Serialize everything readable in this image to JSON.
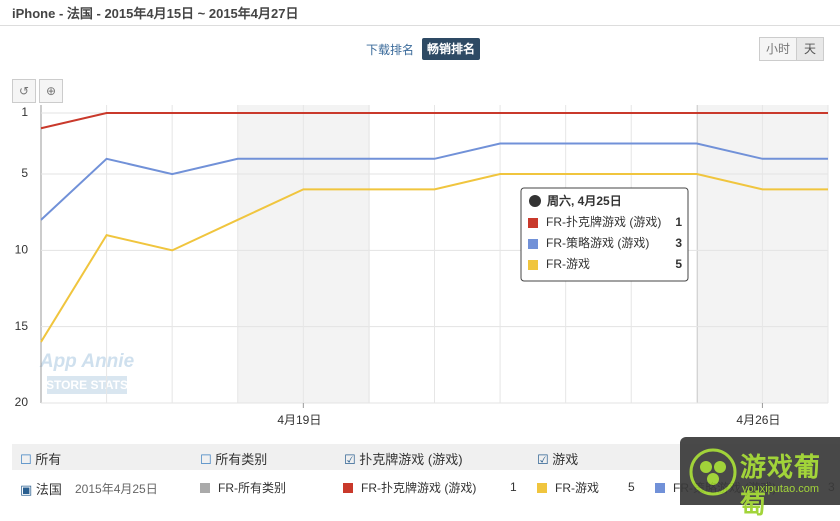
{
  "header": {
    "title": "iPhone - 法国 - 2015年4月15日 ~ 2015年4月27日"
  },
  "tabs": [
    "下载排名",
    "畅销排名"
  ],
  "granularity": [
    "小时",
    "天"
  ],
  "watermark": {
    "brand": "App Annie",
    "sub": "STORE STATS"
  },
  "chart_data": {
    "type": "line",
    "categories": [
      null,
      null,
      null,
      null,
      "4月19日",
      null,
      null,
      null,
      null,
      null,
      null,
      "4月26日",
      null
    ],
    "series": [
      {
        "name": "FR-扑克牌游戏 (游戏)",
        "color": "#c9392b",
        "values": [
          2,
          1,
          1,
          1,
          1,
          1,
          1,
          1,
          1,
          1,
          1,
          1,
          1
        ]
      },
      {
        "name": "FR-策略游戏 (游戏)",
        "color": "#7191d8",
        "values": [
          8,
          4,
          5,
          4,
          4,
          4,
          4,
          3,
          3,
          3,
          3,
          4,
          4
        ]
      },
      {
        "name": "FR-游戏",
        "color": "#f0c53e",
        "values": [
          16,
          9,
          10,
          8,
          6,
          6,
          6,
          5,
          5,
          5,
          5,
          6,
          6
        ]
      }
    ],
    "ylim": [
      20,
      1
    ],
    "yticks": [
      1,
      5,
      10,
      15,
      20
    ],
    "grid": true,
    "tooltip": {
      "title": "周六, 4月25日"
    }
  },
  "filters": {
    "row1": [
      "所有",
      "所有类别",
      "扑克牌游戏 (游戏)",
      "游戏"
    ],
    "row2": {
      "country": "法国",
      "date": "2015年4月25日",
      "all": "FR-所有类别"
    }
  },
  "logo": {
    "name": "游戏葡萄",
    "url": "youxiputao.com"
  }
}
